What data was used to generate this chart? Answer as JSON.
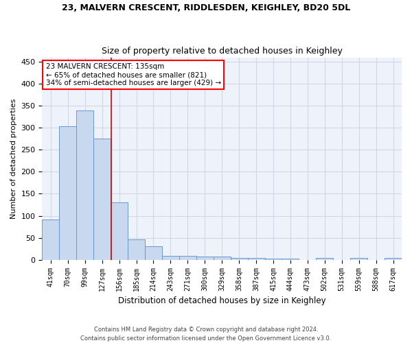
{
  "title": "23, MALVERN CRESCENT, RIDDLESDEN, KEIGHLEY, BD20 5DL",
  "subtitle": "Size of property relative to detached houses in Keighley",
  "xlabel": "Distribution of detached houses by size in Keighley",
  "ylabel": "Number of detached properties",
  "bar_labels": [
    "41sqm",
    "70sqm",
    "99sqm",
    "127sqm",
    "156sqm",
    "185sqm",
    "214sqm",
    "243sqm",
    "271sqm",
    "300sqm",
    "329sqm",
    "358sqm",
    "387sqm",
    "415sqm",
    "444sqm",
    "473sqm",
    "502sqm",
    "531sqm",
    "559sqm",
    "588sqm",
    "617sqm"
  ],
  "bar_values": [
    91,
    303,
    340,
    276,
    131,
    46,
    31,
    9,
    9,
    7,
    7,
    4,
    4,
    2,
    2,
    0,
    4,
    0,
    4,
    0,
    4
  ],
  "bar_color": "#c8d8ef",
  "bar_edge_color": "#6699cc",
  "grid_color": "#d0d8e8",
  "background_color": "#eef2fa",
  "annotation_text": "23 MALVERN CRESCENT: 135sqm\n← 65% of detached houses are smaller (821)\n34% of semi-detached houses are larger (429) →",
  "annotation_box_color": "white",
  "annotation_box_edge_color": "red",
  "vline_x": 3.52,
  "vline_color": "#cc0000",
  "footer_line1": "Contains HM Land Registry data © Crown copyright and database right 2024.",
  "footer_line2": "Contains public sector information licensed under the Open Government Licence v3.0.",
  "ylim": [
    0,
    460
  ],
  "yticks": [
    0,
    50,
    100,
    150,
    200,
    250,
    300,
    350,
    400,
    450
  ]
}
